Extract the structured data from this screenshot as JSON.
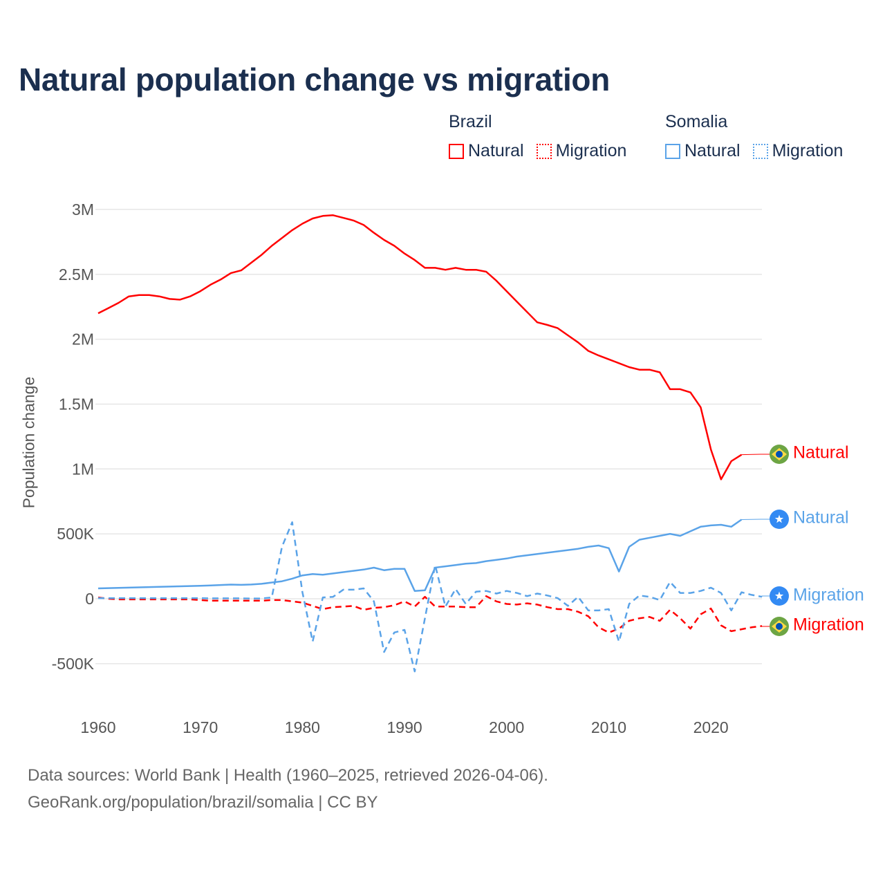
{
  "title": "Natural population change vs migration",
  "legend": {
    "groups": [
      {
        "name": "Brazil",
        "items": [
          {
            "label": "Natural",
            "style": "solid",
            "color": "#ff0000"
          },
          {
            "label": "Migration",
            "style": "dotted",
            "color": "#ff0000"
          }
        ]
      },
      {
        "name": "Somalia",
        "items": [
          {
            "label": "Natural",
            "style": "solid",
            "color": "#5aa3e8"
          },
          {
            "label": "Migration",
            "style": "dotted",
            "color": "#5aa3e8"
          }
        ]
      }
    ]
  },
  "end_labels": {
    "brazil_natural": "Natural",
    "somalia_natural": "Natural",
    "somalia_migration": "Migration",
    "brazil_migration": "Migration"
  },
  "footer": {
    "line1": "Data sources: World Bank | Health (1960–2025, retrieved 2026-04-06).",
    "line2": "GeoRank.org/population/brazil/somalia | CC BY"
  },
  "chart_data": {
    "type": "line",
    "title": "Natural population change vs migration",
    "xlabel": "",
    "ylabel": "Population change",
    "xlim": [
      1960,
      2025
    ],
    "ylim": [
      -500000,
      3000000
    ],
    "x_ticks": [
      1960,
      1970,
      1980,
      1990,
      2000,
      2010,
      2020
    ],
    "x_tick_labels": [
      "1960",
      "1970",
      "1980",
      "1990",
      "2000",
      "2010",
      "2020"
    ],
    "y_ticks": [
      3000000,
      2500000,
      2000000,
      1500000,
      1000000,
      500000,
      0,
      -500000
    ],
    "y_tick_labels": [
      "3M",
      "2.5M",
      "2M",
      "1.5M",
      "1M",
      "500K",
      "0",
      "-500K"
    ],
    "grid": true,
    "legend_position": "top-right",
    "series": [
      {
        "name": "Brazil Natural",
        "country": "Brazil",
        "kind": "Natural",
        "color": "#ff0000",
        "dash": false,
        "start_year": 1960,
        "values_millions": [
          2.2,
          2.24,
          2.28,
          2.33,
          2.34,
          2.34,
          2.33,
          2.31,
          2.305,
          2.33,
          2.37,
          2.42,
          2.46,
          2.51,
          2.53,
          2.59,
          2.65,
          2.72,
          2.78,
          2.84,
          2.89,
          2.93,
          2.95,
          2.955,
          2.935,
          2.915,
          2.88,
          2.82,
          2.765,
          2.72,
          2.66,
          2.61,
          2.55,
          2.55,
          2.535,
          2.55,
          2.535,
          2.535,
          2.52,
          2.45,
          2.37,
          2.29,
          2.21,
          2.13,
          2.11,
          2.085,
          2.03,
          1.975,
          1.91,
          1.875,
          1.845,
          1.815,
          1.785,
          1.765,
          1.765,
          1.745,
          1.615,
          1.615,
          1.59,
          1.475,
          1.15,
          0.92,
          1.06,
          1.11
        ]
      },
      {
        "name": "Brazil Migration",
        "country": "Brazil",
        "kind": "Migration",
        "color": "#ff0000",
        "dash": true,
        "start_year": 1960,
        "values_millions": [
          0.01,
          0.0,
          -0.005,
          -0.005,
          -0.005,
          -0.005,
          -0.005,
          -0.005,
          -0.005,
          -0.005,
          -0.01,
          -0.015,
          -0.015,
          -0.015,
          -0.015,
          -0.015,
          -0.015,
          -0.01,
          -0.01,
          -0.02,
          -0.03,
          -0.055,
          -0.08,
          -0.065,
          -0.06,
          -0.055,
          -0.085,
          -0.07,
          -0.065,
          -0.05,
          -0.02,
          -0.06,
          0.015,
          -0.06,
          -0.06,
          -0.06,
          -0.065,
          -0.065,
          0.02,
          -0.02,
          -0.04,
          -0.045,
          -0.035,
          -0.045,
          -0.065,
          -0.08,
          -0.08,
          -0.1,
          -0.135,
          -0.22,
          -0.26,
          -0.23,
          -0.17,
          -0.15,
          -0.14,
          -0.17,
          -0.085,
          -0.15,
          -0.23,
          -0.12,
          -0.075,
          -0.205,
          -0.25,
          -0.235,
          -0.22,
          -0.21
        ]
      },
      {
        "name": "Somalia Natural",
        "country": "Somalia",
        "kind": "Natural",
        "color": "#5aa3e8",
        "dash": false,
        "start_year": 1960,
        "values_millions": [
          0.08,
          0.082,
          0.084,
          0.086,
          0.088,
          0.09,
          0.092,
          0.094,
          0.096,
          0.098,
          0.1,
          0.103,
          0.106,
          0.109,
          0.107,
          0.11,
          0.115,
          0.125,
          0.135,
          0.155,
          0.18,
          0.19,
          0.185,
          0.195,
          0.205,
          0.215,
          0.225,
          0.24,
          0.22,
          0.23,
          0.23,
          0.06,
          0.065,
          0.24,
          0.25,
          0.26,
          0.27,
          0.275,
          0.29,
          0.3,
          0.31,
          0.325,
          0.335,
          0.345,
          0.355,
          0.365,
          0.375,
          0.385,
          0.4,
          0.41,
          0.39,
          0.21,
          0.4,
          0.455,
          0.47,
          0.485,
          0.5,
          0.485,
          0.52,
          0.555,
          0.565,
          0.57,
          0.555,
          0.61
        ]
      },
      {
        "name": "Somalia Migration",
        "country": "Somalia",
        "kind": "Migration",
        "color": "#5aa3e8",
        "dash": true,
        "start_year": 1960,
        "values_millions": [
          0.005,
          0.005,
          0.005,
          0.005,
          0.005,
          0.005,
          0.005,
          0.005,
          0.005,
          0.005,
          0.005,
          0.003,
          0.003,
          0.003,
          0.003,
          0.002,
          0.002,
          0.01,
          0.4,
          0.59,
          0.05,
          -0.33,
          0.01,
          0.015,
          0.07,
          0.07,
          0.08,
          -0.02,
          -0.41,
          -0.26,
          -0.24,
          -0.56,
          -0.15,
          0.26,
          -0.06,
          0.075,
          -0.04,
          0.055,
          0.06,
          0.04,
          0.06,
          0.045,
          0.02,
          0.04,
          0.025,
          0.005,
          -0.055,
          0.015,
          -0.09,
          -0.09,
          -0.08,
          -0.33,
          -0.04,
          0.025,
          0.015,
          -0.01,
          0.13,
          0.045,
          0.045,
          0.06,
          0.085,
          0.045,
          -0.09,
          0.05,
          0.03,
          0.015
        ]
      }
    ]
  }
}
